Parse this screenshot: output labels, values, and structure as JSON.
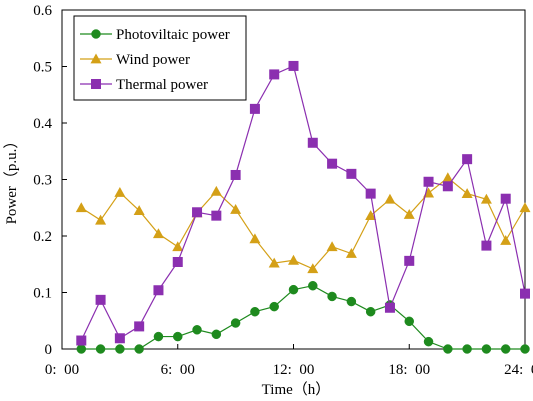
{
  "chart_data": {
    "type": "line",
    "xlabel": "Time（h）",
    "ylabel": "Power（p.u.）",
    "xlim": [
      0,
      24
    ],
    "ylim": [
      0,
      0.6
    ],
    "x_ticks": [
      {
        "value": 0,
        "label": "0:  00"
      },
      {
        "value": 6,
        "label": "6:  00"
      },
      {
        "value": 12,
        "label": "12:  00"
      },
      {
        "value": 18,
        "label": "18:  00"
      },
      {
        "value": 24,
        "label": "24:  00"
      }
    ],
    "y_ticks": [
      {
        "value": 0,
        "label": "0"
      },
      {
        "value": 0.1,
        "label": "0.1"
      },
      {
        "value": 0.2,
        "label": "0.2"
      },
      {
        "value": 0.3,
        "label": "0.3"
      },
      {
        "value": 0.4,
        "label": "0.4"
      },
      {
        "value": 0.5,
        "label": "0.5"
      },
      {
        "value": 0.6,
        "label": "0.6"
      }
    ],
    "grid": false,
    "legend_position": "top-left",
    "x": [
      1,
      2,
      3,
      4,
      5,
      6,
      7,
      8,
      9,
      10,
      11,
      12,
      13,
      14,
      15,
      16,
      17,
      18,
      19,
      20,
      21,
      22,
      23,
      24
    ],
    "series": [
      {
        "name": "Photoviltaic power",
        "color": "#1e8a1e",
        "marker": "circle",
        "values": [
          0.0,
          0.0,
          0.0,
          0.0,
          0.022,
          0.022,
          0.034,
          0.026,
          0.046,
          0.066,
          0.075,
          0.105,
          0.112,
          0.093,
          0.084,
          0.066,
          0.078,
          0.049,
          0.013,
          0.0,
          0.0,
          0.0,
          0.0,
          0.0
        ]
      },
      {
        "name": "Wind power",
        "color": "#d4a017",
        "marker": "triangle",
        "values": [
          0.25,
          0.228,
          0.277,
          0.245,
          0.204,
          0.181,
          0.241,
          0.279,
          0.247,
          0.195,
          0.152,
          0.157,
          0.142,
          0.181,
          0.169,
          0.236,
          0.265,
          0.238,
          0.276,
          0.303,
          0.275,
          0.265,
          0.192,
          0.25
        ]
      },
      {
        "name": "Thermal power",
        "color": "#8b2fb0",
        "marker": "square",
        "values": [
          0.015,
          0.087,
          0.019,
          0.04,
          0.104,
          0.154,
          0.242,
          0.236,
          0.308,
          0.425,
          0.486,
          0.501,
          0.365,
          0.328,
          0.31,
          0.275,
          0.073,
          0.156,
          0.296,
          0.288,
          0.336,
          0.183,
          0.266,
          0.098
        ]
      }
    ]
  }
}
